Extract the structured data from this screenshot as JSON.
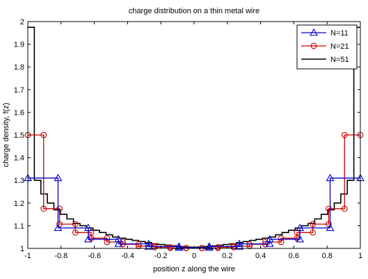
{
  "chart_data": {
    "type": "line",
    "title": "charge distribution on a thin metal wire",
    "xlabel": "position z along the wire",
    "ylabel": "charge density, f(z)",
    "xlim": [
      -1,
      1
    ],
    "ylim": [
      1,
      2
    ],
    "xticks": [
      "-1",
      "-0.8",
      "-0.6",
      "-0.4",
      "-0.2",
      "0",
      "0.2",
      "0.4",
      "0.6",
      "0.8",
      "1"
    ],
    "yticks": [
      "1",
      "1.1",
      "1.2",
      "1.3",
      "1.4",
      "1.5",
      "1.6",
      "1.7",
      "1.8",
      "1.9",
      "2"
    ],
    "grid": false,
    "legend_position": "top-right",
    "line_style": "staircase",
    "series": [
      {
        "name": "N=11",
        "color": "#0000cc",
        "marker": "triangle",
        "widths": 0.181818,
        "values": [
          1.31,
          1.09,
          1.04,
          1.02,
          1.008,
          1.003,
          1.008,
          1.02,
          1.04,
          1.09,
          1.31
        ]
      },
      {
        "name": "N=21",
        "color": "#cc0000",
        "marker": "circle",
        "widths": 0.095238,
        "values": [
          1.5,
          1.175,
          1.107,
          1.07,
          1.045,
          1.028,
          1.018,
          1.01,
          1.005,
          1.002,
          1.001,
          1.002,
          1.005,
          1.01,
          1.018,
          1.028,
          1.045,
          1.07,
          1.107,
          1.175,
          1.5
        ]
      },
      {
        "name": "N=51",
        "color": "#000000",
        "marker": "none",
        "widths": 0.039216,
        "values": [
          1.975,
          1.3,
          1.24,
          1.2,
          1.17,
          1.15,
          1.13,
          1.11,
          1.1,
          1.09,
          1.08,
          1.07,
          1.06,
          1.05,
          1.045,
          1.04,
          1.035,
          1.03,
          1.025,
          1.02,
          1.017,
          1.014,
          1.011,
          1.008,
          1.006,
          1.005,
          1.006,
          1.008,
          1.011,
          1.014,
          1.017,
          1.02,
          1.025,
          1.03,
          1.035,
          1.04,
          1.045,
          1.05,
          1.06,
          1.07,
          1.08,
          1.09,
          1.1,
          1.11,
          1.13,
          1.15,
          1.17,
          1.2,
          1.24,
          1.3,
          1.975
        ]
      }
    ]
  }
}
